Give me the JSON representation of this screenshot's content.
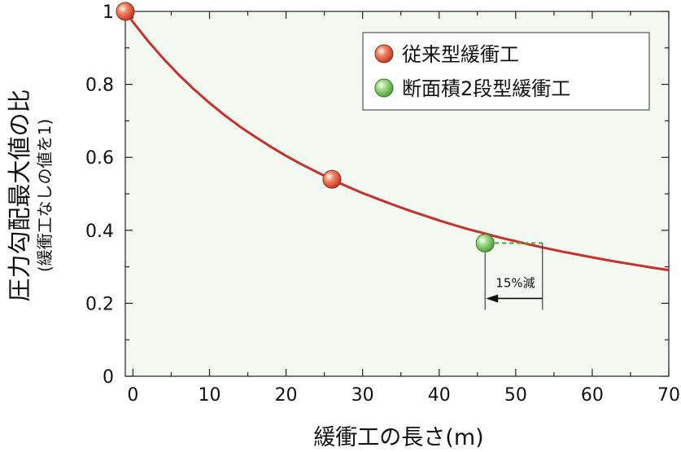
{
  "chart_data": {
    "type": "line",
    "xlabel": "緩衝工の長さ(m)",
    "ylabel": "圧力勾配最大値の比",
    "ylabel_sub": "(緩衝工なしの値を1)",
    "xlim": [
      -1,
      70
    ],
    "ylim": [
      0,
      1
    ],
    "x_ticks": [
      0,
      10,
      20,
      30,
      40,
      50,
      60,
      70
    ],
    "y_ticks": [
      {
        "value": 0,
        "label": "0"
      },
      {
        "value": 0.2,
        "label": "0.2"
      },
      {
        "value": 0.4,
        "label": "0.4"
      },
      {
        "value": 0.6,
        "label": "0.6"
      },
      {
        "value": 0.8,
        "label": "0.8"
      },
      {
        "value": 1,
        "label": "1"
      }
    ],
    "grid": false,
    "legend_position": "top-right",
    "series": [
      {
        "name": "従来型緩衝工",
        "kind": "curve",
        "x": [
          -1,
          0,
          2,
          4,
          6,
          8,
          10,
          12,
          14,
          16,
          18,
          20,
          22,
          24,
          26,
          28,
          30,
          32,
          34,
          36,
          38,
          40,
          42,
          44,
          46,
          48,
          50,
          52,
          54,
          56,
          58,
          60,
          62,
          64,
          66,
          68,
          70
        ],
        "y": [
          1.0,
          0.971,
          0.918,
          0.87,
          0.826,
          0.786,
          0.749,
          0.715,
          0.684,
          0.656,
          0.629,
          0.604,
          0.581,
          0.56,
          0.539,
          0.52,
          0.502,
          0.486,
          0.47,
          0.455,
          0.441,
          0.427,
          0.414,
          0.402,
          0.391,
          0.38,
          0.37,
          0.36,
          0.351,
          0.342,
          0.334,
          0.326,
          0.318,
          0.311,
          0.304,
          0.297,
          0.291
        ],
        "color": "#c9302c"
      },
      {
        "name": "従来型緩衝工",
        "kind": "markers",
        "x": [
          -1,
          26
        ],
        "y": [
          1.0,
          0.54
        ],
        "color": "#d24a2c"
      },
      {
        "name": "断面積2段型緩衝工",
        "kind": "markers",
        "x": [
          46
        ],
        "y": [
          0.365
        ],
        "color": "#5cb04a"
      }
    ],
    "annotations": [
      {
        "text": "15%減",
        "x_from": 53.5,
        "x_to": 46,
        "y_ref": 0.365
      }
    ]
  },
  "colors": {
    "plot_background": "#f3f8f1",
    "curve": "#c9302c",
    "marker_red": "#d24a2c",
    "marker_green": "#5cb04a",
    "dashed_line": "#4caf3c"
  }
}
